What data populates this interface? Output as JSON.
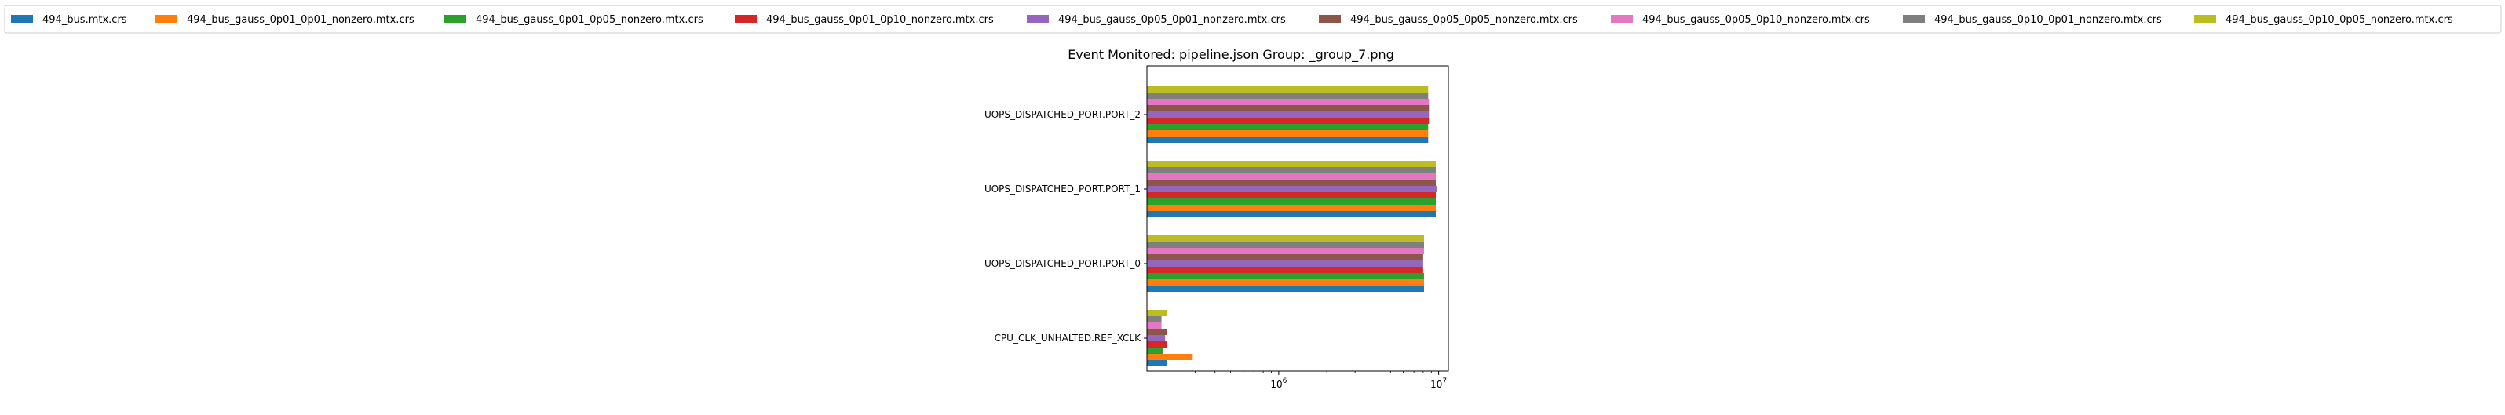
{
  "chart_data": {
    "type": "bar",
    "orientation": "horizontal",
    "title": "Event Monitored: pipeline.json Group: _group_7.png",
    "xscale": "log",
    "xlim": [
      150000,
      11500000
    ],
    "xticks": [
      {
        "value": 1000000,
        "base": "10",
        "exp": "6"
      },
      {
        "value": 10000000,
        "base": "10",
        "exp": "7"
      }
    ],
    "categories": [
      "CPU_CLK_UNHALTED.REF_XCLK",
      "UOPS_DISPATCHED_PORT.PORT_0",
      "UOPS_DISPATCHED_PORT.PORT_1",
      "UOPS_DISPATCHED_PORT.PORT_2"
    ],
    "series": [
      {
        "name": "494_bus.mtx.crs",
        "color": "#1f77b4",
        "values": [
          200000,
          8100000,
          9600000,
          8600000
        ]
      },
      {
        "name": "494_bus_gauss_0p01_0p01_nonzero.mtx.crs",
        "color": "#ff7f0e",
        "values": [
          290000,
          8100000,
          9600000,
          8600000
        ]
      },
      {
        "name": "494_bus_gauss_0p01_0p05_nonzero.mtx.crs",
        "color": "#2ca02c",
        "values": [
          190000,
          8100000,
          9600000,
          8600000
        ]
      },
      {
        "name": "494_bus_gauss_0p01_0p10_nonzero.mtx.crs",
        "color": "#d62728",
        "values": [
          200000,
          8000000,
          9600000,
          8700000
        ]
      },
      {
        "name": "494_bus_gauss_0p05_0p01_nonzero.mtx.crs",
        "color": "#9467bd",
        "values": [
          195000,
          8000000,
          9700000,
          8700000
        ]
      },
      {
        "name": "494_bus_gauss_0p05_0p05_nonzero.mtx.crs",
        "color": "#8c564b",
        "values": [
          200000,
          8000000,
          9600000,
          8700000
        ]
      },
      {
        "name": "494_bus_gauss_0p05_0p10_nonzero.mtx.crs",
        "color": "#e377c2",
        "values": [
          185000,
          8100000,
          9600000,
          8700000
        ]
      },
      {
        "name": "494_bus_gauss_0p10_0p01_nonzero.mtx.crs",
        "color": "#7f7f7f",
        "values": [
          185000,
          8100000,
          9600000,
          8600000
        ]
      },
      {
        "name": "494_bus_gauss_0p10_0p05_nonzero.mtx.crs",
        "color": "#bcbd22",
        "values": [
          200000,
          8100000,
          9600000,
          8600000
        ]
      }
    ],
    "legend_position": "top"
  }
}
